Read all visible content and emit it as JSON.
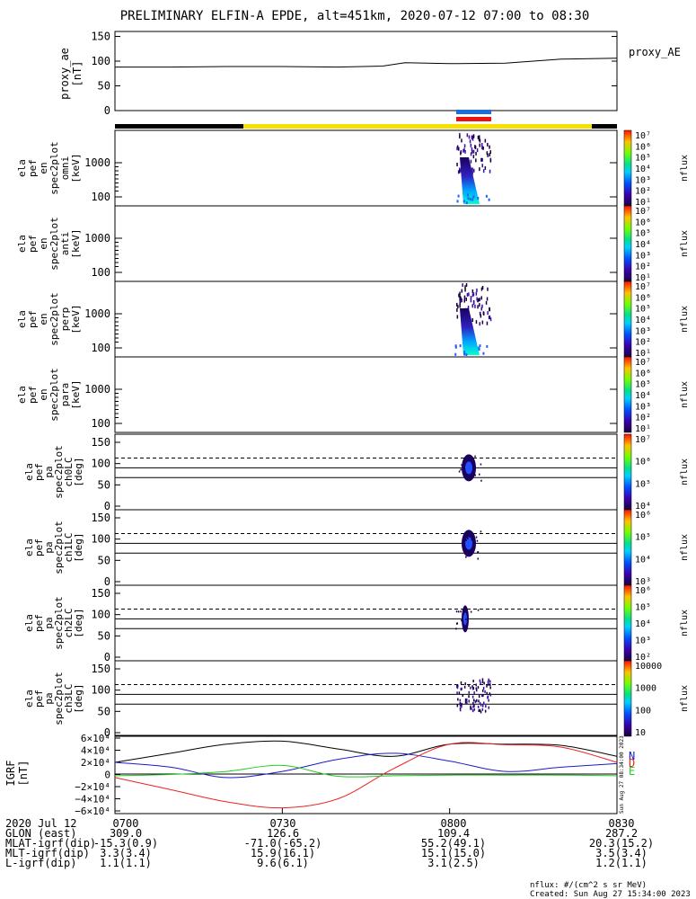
{
  "title": "PRELIMINARY ELFIN-A EPDE, alt=451km, 2020-07-12 07:00 to 08:30",
  "ae_panel": {
    "ylabel": [
      "proxy_ae",
      "[nT]"
    ],
    "right_label": "proxy_AE",
    "yticks": [
      "150",
      "100",
      "50",
      "0"
    ]
  },
  "colors": {
    "sci_bar_day": "#f5e000",
    "sci_bar_night": "#000000",
    "ion_bar_blue": "#1a6fe0",
    "ion_bar_red": "#ee1111",
    "n_color": "#1a1acc",
    "d_color": "#ee2222",
    "e_color": "#22cc22",
    "total_color": "#000000"
  },
  "spectral_panels": [
    {
      "id": "omni",
      "ylabel": [
        "ela",
        "pef",
        "en",
        "spec2plot",
        "omni",
        "[keV]"
      ],
      "yticks": [
        "1000",
        "100"
      ],
      "cbar_ticks": [
        "10⁷",
        "10⁶",
        "10⁵",
        "10⁴",
        "10³",
        "10²",
        "10¹"
      ],
      "cbar_label": "nflux"
    },
    {
      "id": "anti",
      "ylabel": [
        "ela",
        "pef",
        "en",
        "spec2plot",
        "anti",
        "[keV]"
      ],
      "yticks": [
        "1000",
        "100"
      ],
      "cbar_ticks": [
        "10⁷",
        "10⁶",
        "10⁵",
        "10⁴",
        "10³",
        "10²",
        "10¹"
      ],
      "cbar_label": "nflux"
    },
    {
      "id": "perp",
      "ylabel": [
        "ela",
        "pef",
        "en",
        "spec2plot",
        "perp",
        "[keV]"
      ],
      "yticks": [
        "1000",
        "100"
      ],
      "cbar_ticks": [
        "10⁷",
        "10⁶",
        "10⁵",
        "10⁴",
        "10³",
        "10²",
        "10¹"
      ],
      "cbar_label": "nflux"
    },
    {
      "id": "para",
      "ylabel": [
        "ela",
        "pef",
        "en",
        "spec2plot",
        "para",
        "[keV]"
      ],
      "yticks": [
        "1000",
        "100"
      ],
      "cbar_ticks": [
        "10⁷",
        "10⁶",
        "10⁵",
        "10⁴",
        "10³",
        "10²",
        "10¹"
      ],
      "cbar_label": "nflux"
    }
  ],
  "pa_panels": [
    {
      "id": "ch0",
      "ylabel": [
        "ela",
        "pef",
        "pa",
        "spec2plot",
        "ch0LC",
        "[deg]"
      ],
      "yticks": [
        "150",
        "100",
        "50",
        "0"
      ],
      "cbar_ticks": [
        "10⁷",
        "10⁶",
        "10⁵",
        "10⁴"
      ],
      "cbar_label": "nflux"
    },
    {
      "id": "ch1",
      "ylabel": [
        "ela",
        "pef",
        "pa",
        "spec2plot",
        "ch1LC",
        "[deg]"
      ],
      "yticks": [
        "150",
        "100",
        "50",
        "0"
      ],
      "cbar_ticks": [
        "10⁶",
        "10⁵",
        "10⁴",
        "10³"
      ],
      "cbar_label": "nflux"
    },
    {
      "id": "ch2",
      "ylabel": [
        "ela",
        "pef",
        "pa",
        "spec2plot",
        "ch2LC",
        "[deg]"
      ],
      "yticks": [
        "150",
        "100",
        "50",
        "0"
      ],
      "cbar_ticks": [
        "10⁶",
        "10⁵",
        "10⁴",
        "10³",
        "10²"
      ],
      "cbar_label": "nflux"
    },
    {
      "id": "ch3",
      "ylabel": [
        "ela",
        "pef",
        "pa",
        "spec2plot",
        "ch3LC",
        "[deg]"
      ],
      "yticks": [
        "150",
        "100",
        "50",
        "0"
      ],
      "cbar_ticks": [
        "10000",
        "1000",
        "100",
        "10"
      ],
      "cbar_label": "nflux"
    }
  ],
  "igrf_panel": {
    "ylabel": [
      "IGRF",
      "[nT]"
    ],
    "yticks": [
      "6×10⁴",
      "4×10⁴",
      "2×10⁴",
      "0",
      "−2×10⁴",
      "−4×10⁴",
      "−6×10⁴"
    ],
    "legend": [
      "N",
      "D",
      "E"
    ],
    "side_stamp": "Sun Aug 27 08:34:00 2023"
  },
  "orbit_table": {
    "rows": [
      {
        "label": "2020 Jul 12",
        "values": [
          "0700",
          "0730",
          "0800",
          "0830"
        ]
      },
      {
        "label": "GLON (east)",
        "values": [
          "309.0",
          "126.6",
          "109.4",
          "287.2"
        ]
      },
      {
        "label": "MLAT-igrf(dip)",
        "values": [
          "-15.3(0.9)",
          "-71.0(-65.2)",
          "55.2(49.1)",
          "20.3(15.2)"
        ]
      },
      {
        "label": "MLT-igrf(dip)",
        "values": [
          "3.3(3.4)",
          "15.9(16.1)",
          "15.1(15.0)",
          "3.5(3.4)"
        ]
      },
      {
        "label": "L-igrf(dip)",
        "values": [
          "1.1(1.1)",
          "9.6(6.1)",
          "3.1(2.5)",
          "1.2(1.1)"
        ]
      }
    ]
  },
  "footer": {
    "units": "nflux: #/(cm^2 s sr MeV)",
    "created": "Created: Sun Aug 27 15:34:00 2023"
  },
  "chart_data": [
    {
      "type": "line",
      "panel": "proxy_ae",
      "ylabel": "proxy_ae [nT]",
      "ylim": [
        0,
        160
      ],
      "x_minutes": [
        0,
        10,
        20,
        30,
        40,
        48,
        52,
        60,
        70,
        80,
        90
      ],
      "series": [
        {
          "name": "proxy_AE",
          "values": [
            88,
            88,
            89,
            89,
            88,
            90,
            97,
            95,
            96,
            104,
            106
          ]
        }
      ]
    },
    {
      "type": "line",
      "panel": "IGRF",
      "ylabel": "IGRF [nT]",
      "ylim": [
        -60000,
        60000
      ],
      "x_minutes": [
        0,
        10,
        20,
        30,
        40,
        50,
        60,
        70,
        80,
        90
      ],
      "series": [
        {
          "name": "total",
          "values": [
            20000,
            35000,
            50000,
            55000,
            42000,
            30000,
            50000,
            50000,
            48000,
            30000
          ]
        },
        {
          "name": "N",
          "values": [
            20000,
            12000,
            -5000,
            5000,
            25000,
            35000,
            22000,
            5000,
            12000,
            18000
          ]
        },
        {
          "name": "D",
          "values": [
            -5000,
            -25000,
            -45000,
            -55000,
            -40000,
            10000,
            50000,
            49000,
            45000,
            20000
          ]
        },
        {
          "name": "E",
          "values": [
            -2000,
            0,
            5000,
            15000,
            -3000,
            -2000,
            -1000,
            -1000,
            -1000,
            -2000
          ]
        }
      ]
    }
  ]
}
